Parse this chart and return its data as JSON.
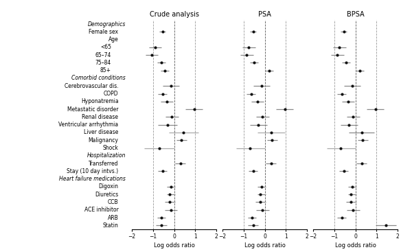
{
  "labels": [
    "Demographics",
    "Female sex",
    "Age",
    "<65",
    "65–74",
    "75–84",
    "85+",
    "Comorbid conditions",
    "Cerebrovascular dis.",
    "COPD",
    "Hyponatremia",
    "Metastatic disorder",
    "Renal disease",
    "Ventricular arrhythmia",
    "Liver disease",
    "Malignancy",
    "Shock",
    "Hospitalization",
    "Transferred",
    "Stay (10 day intvs.)",
    "Heart failure medications",
    "Digoxin",
    "Diuretics",
    "CCB",
    "ACE inhibitor",
    "ARB",
    "Statin"
  ],
  "label_indent": [
    0,
    1,
    1,
    2,
    2,
    2,
    2,
    0,
    1,
    1,
    1,
    1,
    1,
    1,
    1,
    1,
    1,
    0,
    1,
    1,
    0,
    1,
    1,
    1,
    1,
    1,
    1
  ],
  "is_header": [
    true,
    false,
    false,
    false,
    false,
    false,
    false,
    true,
    false,
    false,
    false,
    false,
    false,
    false,
    false,
    false,
    false,
    true,
    false,
    false,
    true,
    false,
    false,
    false,
    false,
    false,
    false
  ],
  "crude": {
    "est": [
      null,
      -0.55,
      null,
      -0.9,
      -1.05,
      -0.6,
      -0.45,
      null,
      -0.15,
      -0.55,
      -0.35,
      0.95,
      -0.1,
      -0.3,
      0.45,
      0.35,
      -0.7,
      null,
      0.3,
      -0.55,
      null,
      -0.15,
      -0.2,
      -0.2,
      -0.15,
      -0.6,
      -0.6
    ],
    "lo": [
      null,
      -0.7,
      null,
      -1.2,
      -1.35,
      -0.8,
      -0.65,
      null,
      -0.55,
      -0.75,
      -0.65,
      0.55,
      -0.4,
      -0.75,
      -0.25,
      0.1,
      -1.4,
      null,
      0.05,
      -0.75,
      null,
      -0.35,
      -0.35,
      -0.45,
      -0.45,
      -0.8,
      -0.85
    ],
    "hi": [
      null,
      -0.4,
      null,
      -0.6,
      -0.75,
      -0.4,
      -0.25,
      null,
      0.25,
      -0.35,
      -0.05,
      1.35,
      0.2,
      0.15,
      1.15,
      0.6,
      0.0,
      null,
      0.55,
      -0.35,
      null,
      0.05,
      0.05,
      0.05,
      0.15,
      -0.4,
      -0.35
    ]
  },
  "psa": {
    "est": [
      null,
      -0.55,
      null,
      -0.75,
      -0.85,
      -0.5,
      0.2,
      null,
      -0.15,
      -0.65,
      -0.35,
      0.95,
      -0.1,
      -0.3,
      0.3,
      0.35,
      -0.7,
      null,
      0.3,
      -0.55,
      null,
      -0.15,
      -0.2,
      -0.2,
      -0.1,
      -0.6,
      -0.55
    ],
    "lo": [
      null,
      -0.7,
      null,
      -1.05,
      -1.15,
      -0.7,
      0.0,
      null,
      -0.55,
      -0.85,
      -0.65,
      0.55,
      -0.4,
      -0.7,
      -0.35,
      0.1,
      -1.35,
      null,
      0.05,
      -0.75,
      null,
      -0.35,
      -0.35,
      -0.45,
      -0.4,
      -0.8,
      -0.8
    ],
    "hi": [
      null,
      -0.4,
      null,
      -0.45,
      -0.55,
      -0.3,
      0.4,
      null,
      0.25,
      -0.45,
      -0.05,
      1.35,
      0.2,
      0.1,
      0.95,
      0.6,
      0.0,
      null,
      0.55,
      -0.35,
      null,
      0.05,
      0.05,
      0.05,
      0.2,
      -0.4,
      -0.3
    ]
  },
  "bpsa": {
    "est": [
      null,
      -0.55,
      null,
      -0.75,
      -0.85,
      -0.45,
      0.2,
      null,
      -0.15,
      -0.65,
      -0.35,
      0.95,
      -0.1,
      -0.3,
      0.3,
      0.35,
      -0.7,
      null,
      0.3,
      -0.55,
      null,
      -0.15,
      -0.2,
      -0.2,
      -0.1,
      -0.65,
      1.45
    ],
    "lo": [
      null,
      -0.7,
      null,
      -1.05,
      -1.15,
      -0.65,
      0.0,
      null,
      -0.55,
      -0.85,
      -0.65,
      0.55,
      -0.4,
      -0.7,
      -0.3,
      0.1,
      -1.35,
      null,
      0.05,
      -0.75,
      null,
      -0.35,
      -0.35,
      -0.45,
      -0.4,
      -0.85,
      0.95
    ],
    "hi": [
      null,
      -0.4,
      null,
      -0.45,
      -0.55,
      -0.25,
      0.4,
      null,
      0.25,
      -0.45,
      -0.05,
      1.35,
      0.2,
      0.1,
      0.9,
      0.6,
      0.0,
      null,
      0.55,
      -0.35,
      null,
      0.05,
      0.05,
      0.05,
      0.2,
      -0.45,
      1.95
    ]
  },
  "xlim": [
    -2,
    2
  ],
  "xticks": [
    -2,
    -1,
    0,
    1,
    2
  ],
  "xlabel": "Log odds ratio",
  "vlines": [
    -1,
    0,
    1
  ],
  "panel_titles": [
    "Crude analysis",
    "PSA",
    "BPSA"
  ],
  "point_color": "#111111",
  "ci_color": "#888888",
  "wide_ci_color": "#aaaaaa"
}
